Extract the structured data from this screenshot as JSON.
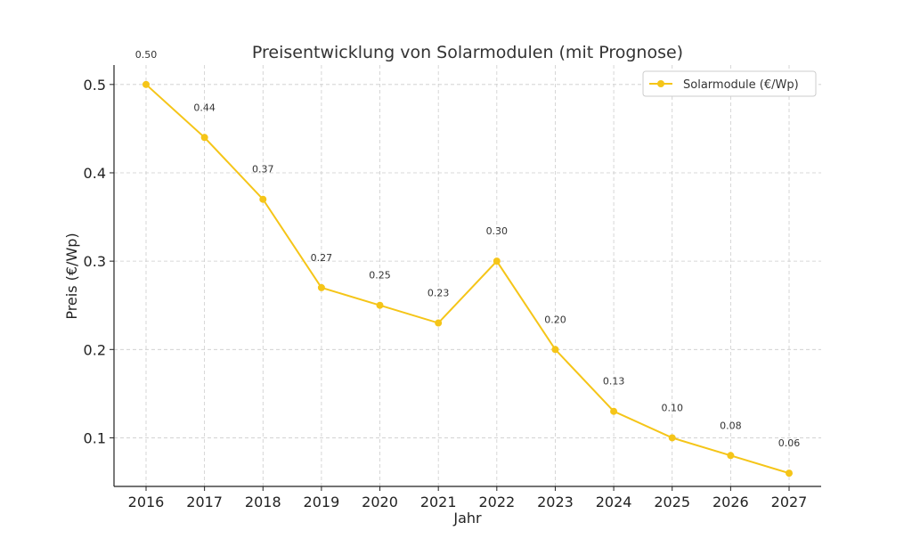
{
  "chart_data": {
    "type": "line",
    "title": "Preisentwicklung von Solarmodulen (mit Prognose)",
    "xlabel": "Jahr",
    "ylabel": "Preis (€/Wp)",
    "x": [
      2016,
      2017,
      2018,
      2019,
      2020,
      2021,
      2022,
      2023,
      2024,
      2025,
      2026,
      2027
    ],
    "x_tick_labels": [
      "2016",
      "2017",
      "2018",
      "2019",
      "2020",
      "2021",
      "2022",
      "2023",
      "2024",
      "2025",
      "2026",
      "2027"
    ],
    "y_ticks": [
      0.1,
      0.2,
      0.3,
      0.4,
      0.5
    ],
    "y_tick_labels": [
      "0.1",
      "0.2",
      "0.3",
      "0.4",
      "0.5"
    ],
    "ylim": [
      0.045,
      0.522
    ],
    "grid": true,
    "legend_position": "top-right",
    "series": [
      {
        "name": "Solarmodule (€/Wp)",
        "color": "#F5C518",
        "values": [
          0.5,
          0.44,
          0.37,
          0.27,
          0.25,
          0.23,
          0.3,
          0.2,
          0.13,
          0.1,
          0.08,
          0.06
        ],
        "labels": [
          "0.50",
          "0.44",
          "0.37",
          "0.27",
          "0.25",
          "0.23",
          "0.30",
          "0.20",
          "0.13",
          "0.10",
          "0.08",
          "0.06"
        ]
      }
    ]
  }
}
